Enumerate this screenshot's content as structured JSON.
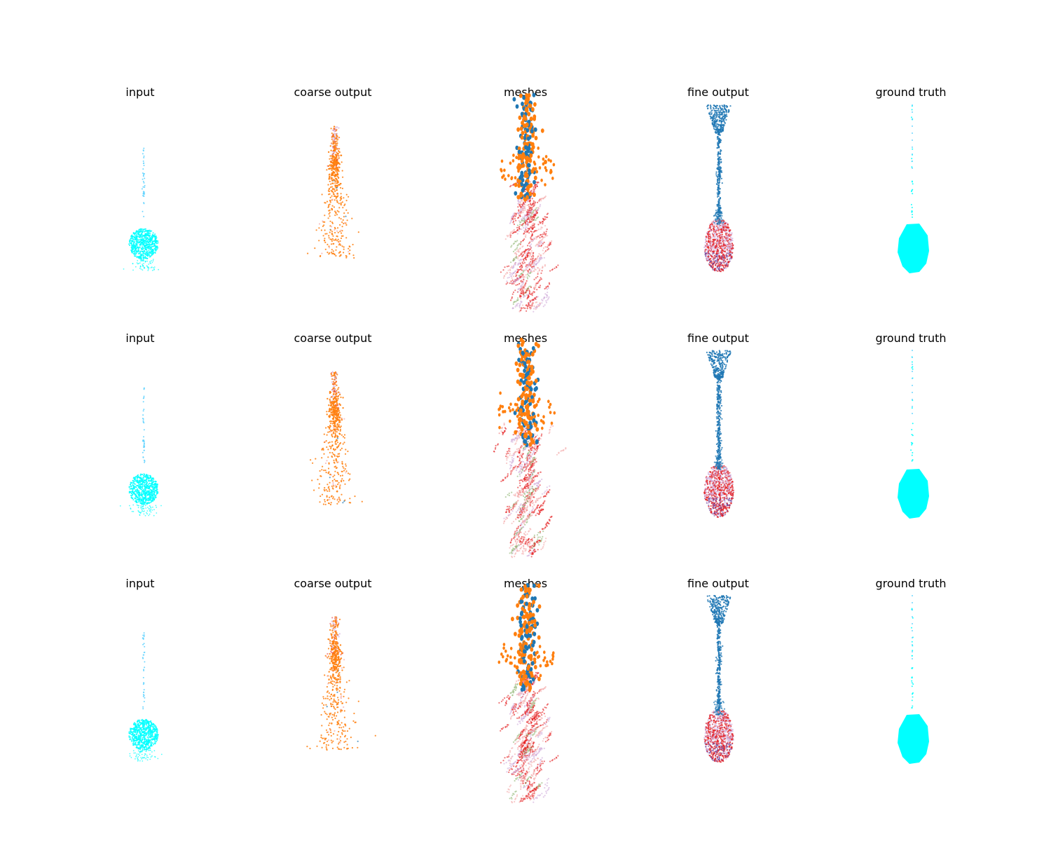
{
  "figure": {
    "rows": 3,
    "columns": [
      "input",
      "coarse output",
      "meshes",
      "fine output",
      "ground truth"
    ]
  },
  "colors": {
    "cyan": "#00ffff",
    "input_light": "#5fd3ff",
    "orange": "#ff7f0e",
    "blue": "#1f77b4",
    "red": "#e41a1c",
    "pink": "#f4a6a6",
    "purple": "#6a3d9a",
    "lavender": "#cfa9d9",
    "green": "#8fb573"
  },
  "chart_data": [
    {
      "type": "scatter",
      "row": 1,
      "panels": [
        {
          "title": "input",
          "shape": "input",
          "points_shown": "cyan point cloud: thin vertical stem above a rounded dense body"
        },
        {
          "title": "coarse output",
          "shape": "coarse",
          "points_shown": "orange scattered column with pink/red/lavender tint"
        },
        {
          "title": "meshes",
          "shape": "meshes",
          "points_shown": "blue and orange mesh patches at top, red/pink/purple/green patches below"
        },
        {
          "title": "fine output",
          "shape": "fine",
          "points_shown": "blue fan top, blue stem, red and purple bulb at bottom"
        },
        {
          "title": "ground truth",
          "shape": "gt",
          "points_shown": "cyan stem with dense cyan oval body"
        }
      ]
    },
    {
      "type": "scatter",
      "row": 2,
      "panels": [
        {
          "title": "input",
          "shape": "input"
        },
        {
          "title": "coarse output",
          "shape": "coarse"
        },
        {
          "title": "meshes",
          "shape": "meshes"
        },
        {
          "title": "fine output",
          "shape": "fine"
        },
        {
          "title": "ground truth",
          "shape": "gt"
        }
      ]
    },
    {
      "type": "scatter",
      "row": 3,
      "panels": [
        {
          "title": "input",
          "shape": "input"
        },
        {
          "title": "coarse output",
          "shape": "coarse"
        },
        {
          "title": "meshes",
          "shape": "meshes"
        },
        {
          "title": "fine output",
          "shape": "fine"
        },
        {
          "title": "ground truth",
          "shape": "gt"
        }
      ]
    }
  ]
}
